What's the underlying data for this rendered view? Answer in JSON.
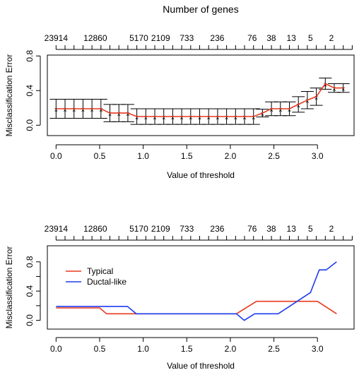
{
  "chart_data": [
    {
      "type": "line",
      "title": "Number of genes",
      "xlabel": "Value of threshold",
      "ylabel": "Misclassification Error",
      "xlim": [
        -0.1,
        3.42
      ],
      "ylim": [
        -0.12,
        0.81
      ],
      "x_ticks": [
        0.0,
        0.5,
        1.0,
        1.5,
        2.0,
        2.5,
        3.0
      ],
      "x_tick_labels": [
        "0.0",
        "0.5",
        "1.0",
        "1.5",
        "2.0",
        "2.5",
        "3.0"
      ],
      "y_ticks": [
        0.0,
        0.4,
        0.8
      ],
      "y_tick_labels": [
        "0.0",
        "0.4",
        "0.8"
      ],
      "top_axis_ticks_x": [
        0.0,
        0.103,
        0.206,
        0.309,
        0.412,
        0.515,
        0.618,
        0.721,
        0.824,
        0.927,
        1.03,
        1.133,
        1.236,
        1.339,
        1.442,
        1.545,
        1.648,
        1.751,
        1.854,
        1.957,
        2.06,
        2.163,
        2.266,
        2.369,
        2.472,
        2.575,
        2.678,
        2.781,
        2.884,
        2.987,
        3.09,
        3.193,
        3.296,
        3.399
      ],
      "top_axis_labels": [
        {
          "x": 0.0,
          "label": "23914"
        },
        {
          "x": 0.45,
          "label": "12860"
        },
        {
          "x": 0.95,
          "label": "5170"
        },
        {
          "x": 1.2,
          "label": "2109"
        },
        {
          "x": 1.5,
          "label": "733"
        },
        {
          "x": 1.85,
          "label": "236"
        },
        {
          "x": 2.25,
          "label": "76"
        },
        {
          "x": 2.47,
          "label": "38"
        },
        {
          "x": 2.7,
          "label": "13"
        },
        {
          "x": 2.92,
          "label": "5"
        },
        {
          "x": 3.16,
          "label": "2"
        }
      ],
      "series": [
        {
          "color": "#e8391e",
          "x": [
            0.0,
            0.103,
            0.206,
            0.309,
            0.412,
            0.515,
            0.618,
            0.721,
            0.824,
            0.927,
            1.03,
            1.133,
            1.236,
            1.339,
            1.442,
            1.545,
            1.648,
            1.751,
            1.854,
            1.957,
            2.06,
            2.163,
            2.266,
            2.369,
            2.472,
            2.575,
            2.678,
            2.781,
            2.884,
            2.987,
            3.09,
            3.193,
            3.296
          ],
          "y": [
            0.19,
            0.19,
            0.19,
            0.19,
            0.19,
            0.19,
            0.14,
            0.14,
            0.14,
            0.1,
            0.1,
            0.1,
            0.1,
            0.1,
            0.1,
            0.1,
            0.1,
            0.1,
            0.1,
            0.1,
            0.1,
            0.1,
            0.1,
            0.14,
            0.19,
            0.19,
            0.19,
            0.24,
            0.29,
            0.33,
            0.48,
            0.43,
            0.43
          ],
          "error": [
            0.11,
            0.11,
            0.11,
            0.11,
            0.11,
            0.11,
            0.1,
            0.1,
            0.1,
            0.09,
            0.09,
            0.09,
            0.09,
            0.09,
            0.09,
            0.09,
            0.09,
            0.09,
            0.09,
            0.09,
            0.09,
            0.09,
            0.09,
            0.045,
            0.08,
            0.08,
            0.08,
            0.09,
            0.1,
            0.1,
            0.065,
            0.05,
            0.05
          ]
        }
      ],
      "grid": false,
      "legend": "none"
    },
    {
      "type": "line",
      "xlabel": "Value of threshold",
      "ylabel": "Misclassification Error",
      "xlim": [
        -0.1,
        3.42
      ],
      "ylim": [
        -0.12,
        1.02
      ],
      "x_ticks": [
        0.0,
        0.5,
        1.0,
        1.5,
        2.0,
        2.5,
        3.0
      ],
      "x_tick_labels": [
        "0.0",
        "0.5",
        "1.0",
        "1.5",
        "2.0",
        "2.5",
        "3.0"
      ],
      "y_ticks": [
        0.0,
        0.2,
        0.4,
        0.6,
        0.8
      ],
      "y_tick_labels": [
        "0.0",
        "0.4",
        "0.8"
      ],
      "y_tick_label_values": [
        0.0,
        0.4,
        0.8
      ],
      "top_axis_ticks_x": [
        0.0,
        0.103,
        0.206,
        0.309,
        0.412,
        0.515,
        0.618,
        0.721,
        0.824,
        0.927,
        1.03,
        1.133,
        1.236,
        1.339,
        1.442,
        1.545,
        1.648,
        1.751,
        1.854,
        1.957,
        2.06,
        2.163,
        2.266,
        2.369,
        2.472,
        2.575,
        2.678,
        2.781,
        2.884,
        2.987,
        3.09,
        3.193,
        3.296,
        3.399
      ],
      "top_axis_labels": [
        {
          "x": 0.0,
          "label": "23914"
        },
        {
          "x": 0.45,
          "label": "12860"
        },
        {
          "x": 0.95,
          "label": "5170"
        },
        {
          "x": 1.2,
          "label": "2109"
        },
        {
          "x": 1.5,
          "label": "733"
        },
        {
          "x": 1.85,
          "label": "236"
        },
        {
          "x": 2.25,
          "label": "76"
        },
        {
          "x": 2.47,
          "label": "38"
        },
        {
          "x": 2.7,
          "label": "13"
        },
        {
          "x": 2.92,
          "label": "5"
        },
        {
          "x": 3.16,
          "label": "2"
        }
      ],
      "series": [
        {
          "name": "Typical",
          "color": "#e8391e",
          "x": [
            0.0,
            0.5,
            0.58,
            0.85,
            1.2,
            2.07,
            2.3,
            2.7,
            3.0,
            3.22
          ],
          "y": [
            0.17,
            0.17,
            0.09,
            0.09,
            0.09,
            0.09,
            0.26,
            0.26,
            0.26,
            0.09
          ]
        },
        {
          "name": "Ductal-like",
          "color": "#1f3cf0",
          "x": [
            0.0,
            0.3,
            0.82,
            0.92,
            1.5,
            2.07,
            2.16,
            2.28,
            2.55,
            2.92,
            3.02,
            3.1,
            3.22
          ],
          "y": [
            0.19,
            0.19,
            0.19,
            0.09,
            0.09,
            0.09,
            0.0,
            0.09,
            0.09,
            0.38,
            0.69,
            0.69,
            0.8
          ]
        }
      ],
      "grid": false,
      "legend": "top-left"
    }
  ]
}
